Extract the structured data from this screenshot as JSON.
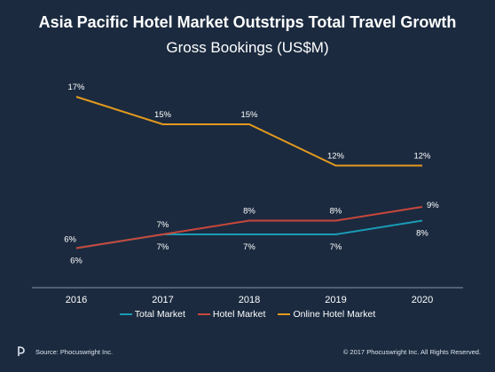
{
  "header": {
    "title": "Asia Pacific Hotel Market Outstrips Total Travel Growth",
    "subtitle": "Gross Bookings (US$M)"
  },
  "footer": {
    "source": "Source: Phocuswright Inc.",
    "copyright": "© 2017 Phocuswright Inc. All Rights Reserved."
  },
  "colors": {
    "background": "#1b2a3f",
    "total_market": "#1a9bb4",
    "hotel_market": "#c8473a",
    "online_hotel_market": "#e39a1d"
  },
  "chart_data": {
    "type": "line",
    "title": "Gross Bookings (US$M)",
    "xlabel": "",
    "ylabel": "",
    "categories": [
      "2016",
      "2017",
      "2018",
      "2019",
      "2020"
    ],
    "ylim": [
      0,
      20
    ],
    "grid": false,
    "legend": "bottom",
    "series": [
      {
        "name": "Total Market",
        "values": [
          6,
          7,
          7,
          7,
          8
        ],
        "labels": [
          "6%",
          "7%",
          "7%",
          "7%",
          "8%"
        ],
        "color": "#1a9bb4"
      },
      {
        "name": "Hotel Market",
        "values": [
          6,
          7,
          8,
          8,
          9
        ],
        "labels": [
          "6%",
          "7%",
          "8%",
          "8%",
          "9%"
        ],
        "color": "#c8473a"
      },
      {
        "name": "Online Hotel Market",
        "values": [
          17,
          15,
          15,
          12,
          12
        ],
        "labels": [
          "17%",
          "15%",
          "15%",
          "12%",
          "12%"
        ],
        "color": "#e39a1d"
      }
    ]
  }
}
